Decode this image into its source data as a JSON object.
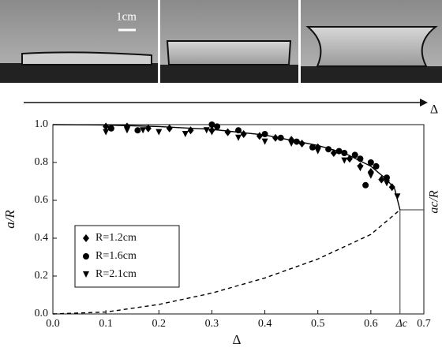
{
  "chart_data": {
    "type": "scatter",
    "photo_scale_label": "1cm",
    "arrow_label": "Δ",
    "x_label": "Δ",
    "y_label": "a/R",
    "xlim": [
      0,
      0.7
    ],
    "ylim": [
      0,
      1.0
    ],
    "xticks": [
      {
        "value": 0,
        "label": "0.0"
      },
      0.1,
      0.2,
      0.3,
      0.4,
      0.5,
      0.6,
      0.7
    ],
    "yticks": [
      {
        "value": 0,
        "label": "0.0"
      },
      0.2,
      0.4,
      0.6,
      0.8,
      {
        "value": 1,
        "label": "1.0"
      }
    ],
    "critical_point": {
      "x": 0.655,
      "y": 0.55,
      "x_label": "Δc",
      "y_label": "ac/R"
    },
    "legend": "lower left",
    "series": [
      {
        "name": "R=1.2cm",
        "marker": "diamond",
        "color": "#000000",
        "x": [
          0.1,
          0.14,
          0.18,
          0.22,
          0.26,
          0.3,
          0.33,
          0.36,
          0.39,
          0.42,
          0.45,
          0.47,
          0.5,
          0.53,
          0.56,
          0.58,
          0.6,
          0.62,
          0.64
        ],
        "values": [
          0.99,
          0.99,
          0.98,
          0.98,
          0.97,
          0.97,
          0.96,
          0.95,
          0.94,
          0.93,
          0.92,
          0.9,
          0.88,
          0.85,
          0.82,
          0.78,
          0.75,
          0.71,
          0.67
        ]
      },
      {
        "name": "R=1.6cm",
        "marker": "circle",
        "color": "#000000",
        "x": [
          0.11,
          0.16,
          0.3,
          0.31,
          0.35,
          0.4,
          0.43,
          0.46,
          0.49,
          0.52,
          0.54,
          0.55,
          0.57,
          0.58,
          0.6,
          0.61,
          0.59,
          0.63
        ],
        "values": [
          0.98,
          0.97,
          1.0,
          0.99,
          0.97,
          0.95,
          0.93,
          0.91,
          0.88,
          0.87,
          0.86,
          0.85,
          0.84,
          0.82,
          0.8,
          0.78,
          0.68,
          0.72
        ]
      },
      {
        "name": "R=2.1cm",
        "marker": "triangle",
        "color": "#000000",
        "x": [
          0.1,
          0.14,
          0.17,
          0.2,
          0.25,
          0.29,
          0.3,
          0.35,
          0.4,
          0.45,
          0.5,
          0.55,
          0.58,
          0.6,
          0.63,
          0.65
        ],
        "values": [
          0.96,
          0.97,
          0.97,
          0.96,
          0.95,
          0.97,
          0.96,
          0.93,
          0.91,
          0.9,
          0.86,
          0.81,
          0.77,
          0.73,
          0.69,
          0.62
        ]
      }
    ],
    "lines": [
      {
        "style": "solid",
        "color": "#000000",
        "x": [
          0,
          0.1,
          0.2,
          0.3,
          0.4,
          0.5,
          0.55,
          0.6,
          0.63,
          0.645,
          0.655
        ],
        "values": [
          1.0,
          0.998,
          0.99,
          0.975,
          0.945,
          0.89,
          0.85,
          0.78,
          0.71,
          0.66,
          0.55
        ]
      },
      {
        "style": "dashed",
        "color": "#000000",
        "x": [
          0,
          0.1,
          0.2,
          0.3,
          0.4,
          0.5,
          0.6,
          0.655
        ],
        "values": [
          0,
          0.01,
          0.05,
          0.11,
          0.19,
          0.29,
          0.42,
          0.55
        ]
      }
    ]
  }
}
